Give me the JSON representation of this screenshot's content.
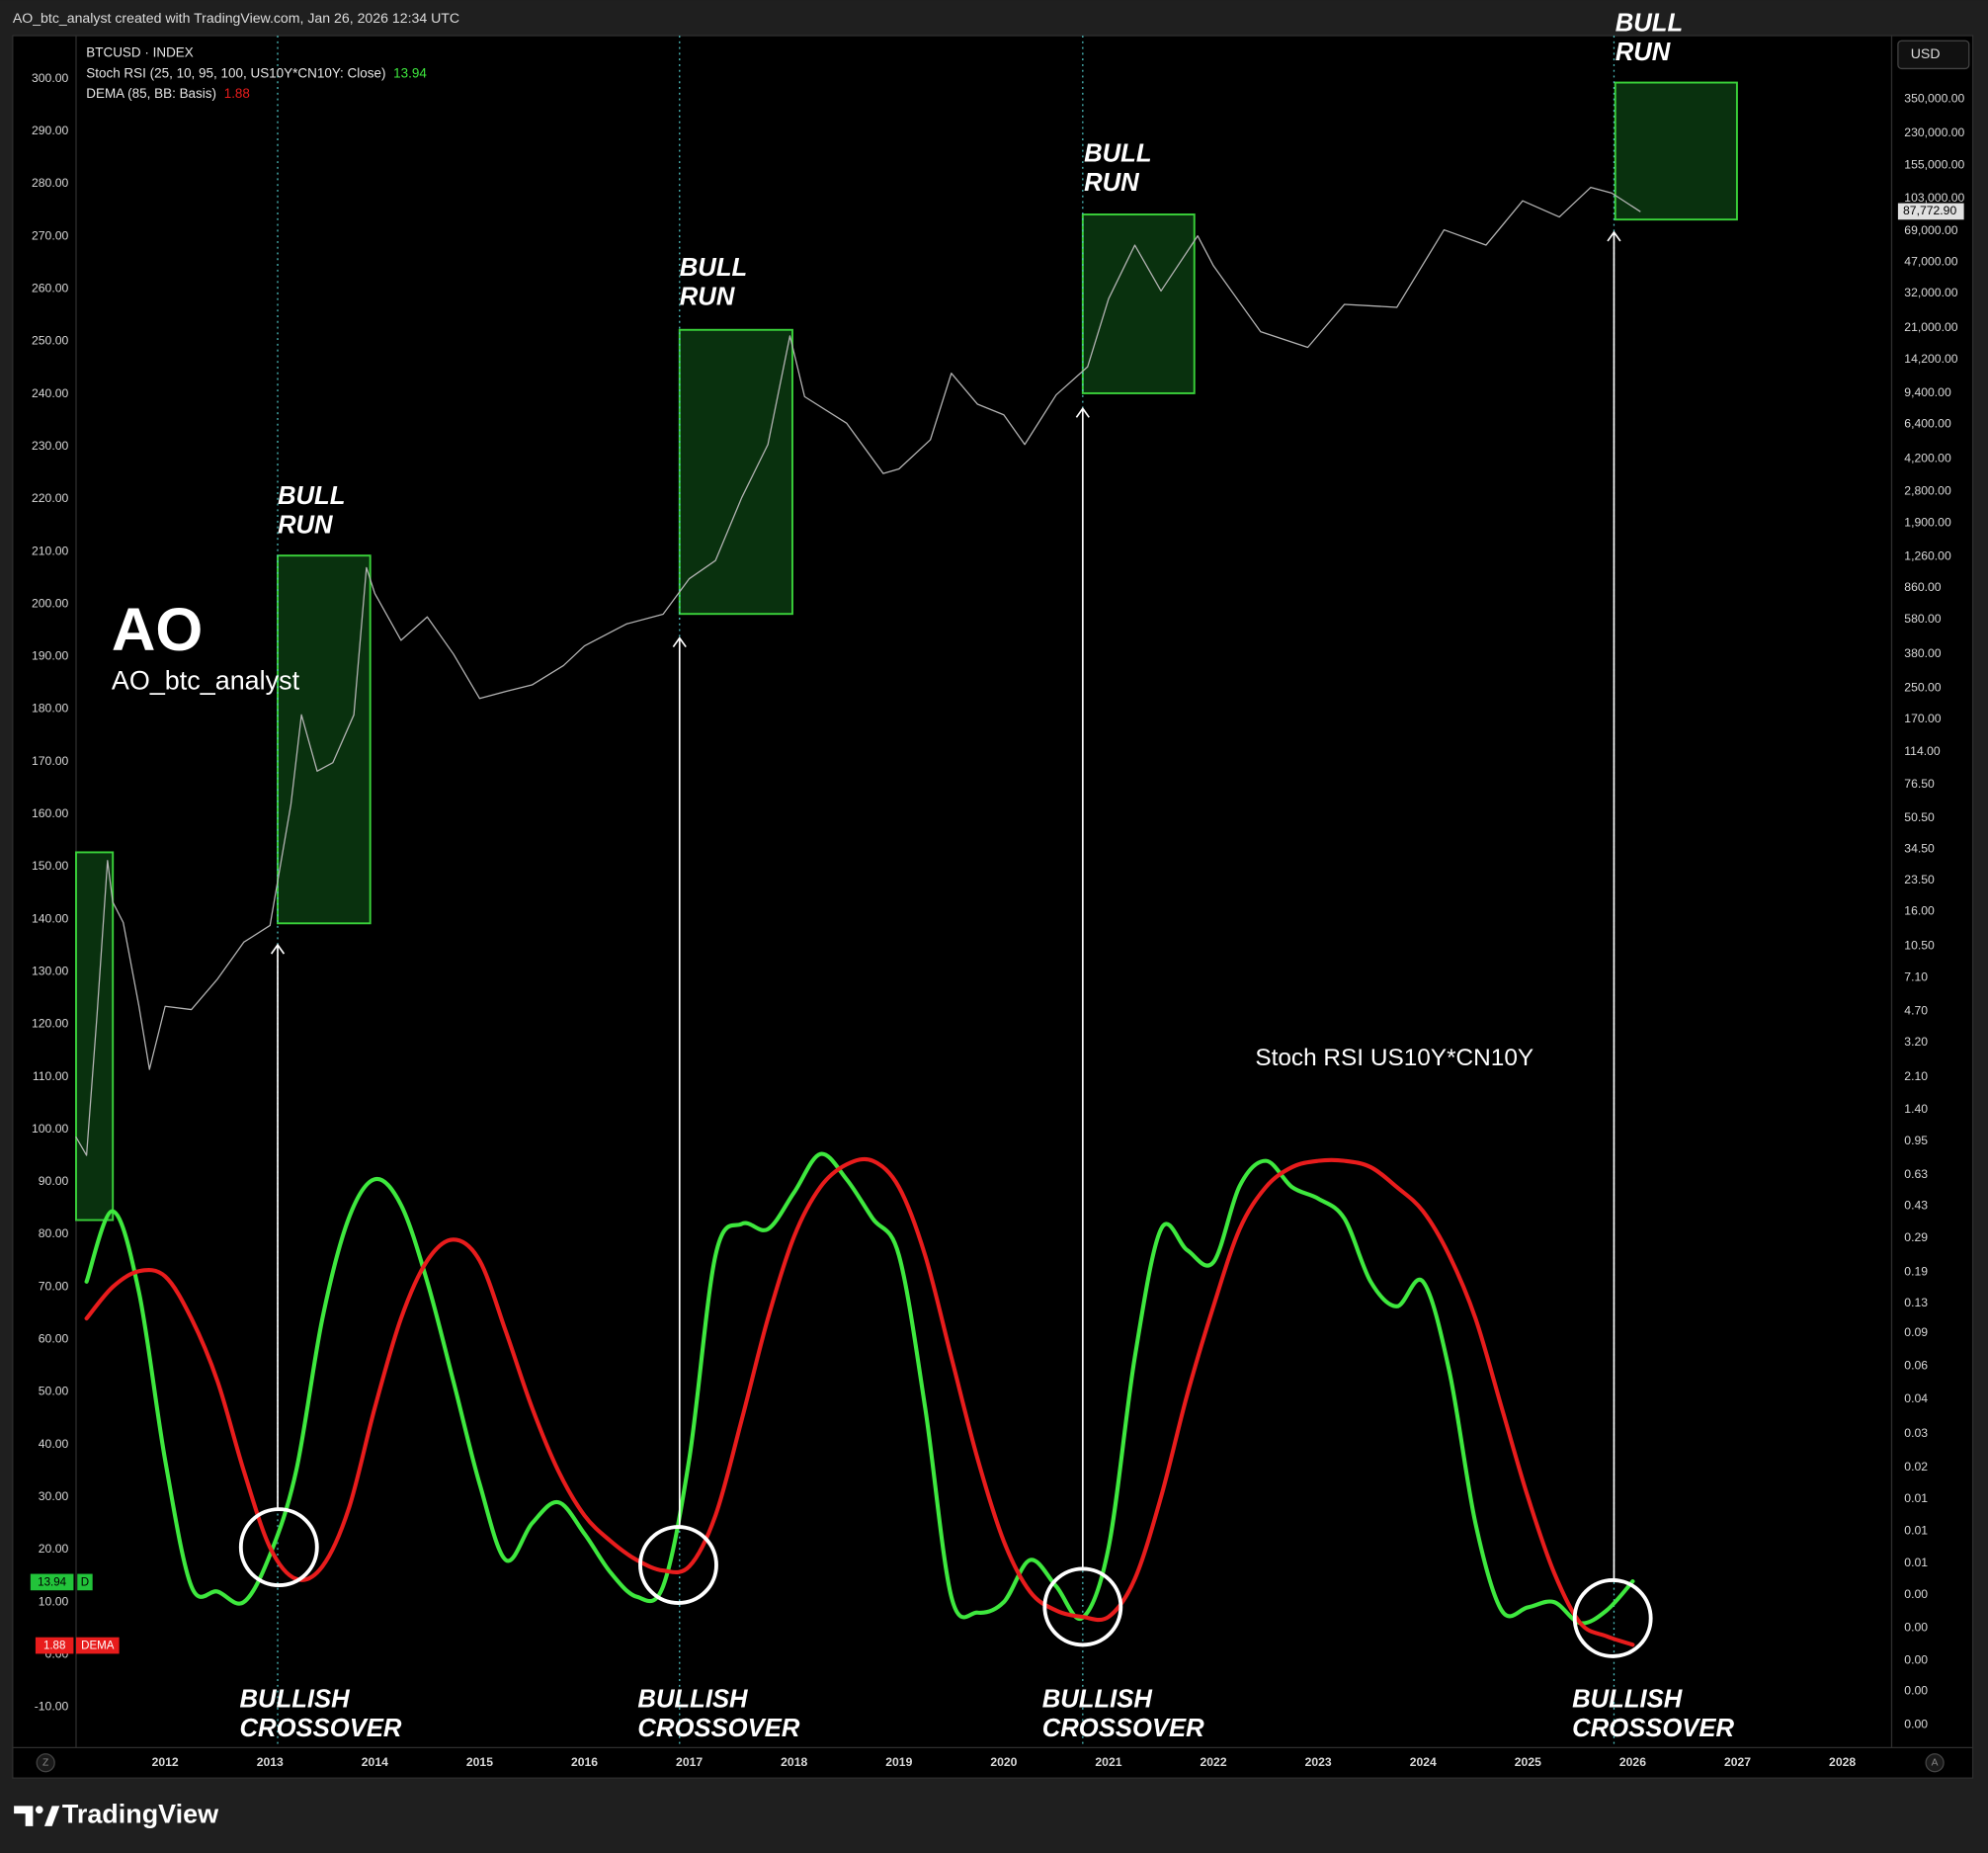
{
  "header": "AO_btc_analyst created with TradingView.com, Jan 26, 2026 12:34 UTC",
  "footer": "TradingView",
  "watermark": {
    "title": "AO",
    "subtitle": "AO_btc_analyst"
  },
  "chart_data": {
    "type": "line",
    "annotations": {
      "indicator_label": "Stoch RSI US10Y*CN10Y",
      "bull_run": [
        [
          "BULL",
          "RUN"
        ],
        [
          "BULL",
          "RUN"
        ],
        [
          "BULL",
          "RUN"
        ],
        [
          "BULL",
          "RUN"
        ]
      ],
      "crossover": [
        [
          "BULLISH",
          "CROSSOVER"
        ],
        [
          "BULLISH",
          "CROSSOVER"
        ],
        [
          "BULLISH",
          "CROSSOVER"
        ],
        [
          "BULLISH",
          "CROSSOVER"
        ]
      ]
    },
    "currency": "USD",
    "badge_d": "D",
    "badge_dema": "DEMA",
    "button_left": "Z",
    "button_right": "A",
    "price_label": {
      "value": 87772.9,
      "label": "87,772.90"
    },
    "xlim": [
      2011.15,
      2028.47
    ],
    "xticks": [
      2012,
      2013,
      2014,
      2015,
      2016,
      2017,
      2018,
      2019,
      2020,
      2021,
      2022,
      2023,
      2024,
      2025,
      2026,
      2027,
      2028
    ],
    "ylim": [
      -17.7,
      308.2
    ],
    "yticks": [
      {
        "value": -10,
        "label": "-10.00"
      },
      {
        "value": 0,
        "label": "0.00"
      },
      {
        "value": 10,
        "label": "10.00"
      },
      {
        "value": 20,
        "label": "20.00"
      },
      {
        "value": 30,
        "label": "30.00"
      },
      {
        "value": 40,
        "label": "40.00"
      },
      {
        "value": 50,
        "label": "50.00"
      },
      {
        "value": 60,
        "label": "60.00"
      },
      {
        "value": 70,
        "label": "70.00"
      },
      {
        "value": 80,
        "label": "80.00"
      },
      {
        "value": 90,
        "label": "90.00"
      },
      {
        "value": 100,
        "label": "100.00"
      },
      {
        "value": 110,
        "label": "110.00"
      },
      {
        "value": 120,
        "label": "120.00"
      },
      {
        "value": 130,
        "label": "130.00"
      },
      {
        "value": 140,
        "label": "140.00"
      },
      {
        "value": 150,
        "label": "150.00"
      },
      {
        "value": 160,
        "label": "160.00"
      },
      {
        "value": 170,
        "label": "170.00"
      },
      {
        "value": 180,
        "label": "180.00"
      },
      {
        "value": 190,
        "label": "190.00"
      },
      {
        "value": 200,
        "label": "200.00"
      },
      {
        "value": 210,
        "label": "210.00"
      },
      {
        "value": 220,
        "label": "220.00"
      },
      {
        "value": 230,
        "label": "230.00"
      },
      {
        "value": 240,
        "label": "240.00"
      },
      {
        "value": 250,
        "label": "250.00"
      },
      {
        "value": 260,
        "label": "260.00"
      },
      {
        "value": 270,
        "label": "270.00"
      },
      {
        "value": 280,
        "label": "280.00"
      },
      {
        "value": 290,
        "label": "290.00"
      },
      {
        "value": 300,
        "label": "300.00"
      }
    ],
    "y2lim": [
      0.00055,
      762000
    ],
    "y2log": true,
    "y2ticks": [
      {
        "value": 350000,
        "label": "350,000.00"
      },
      {
        "value": 230000,
        "label": "230,000.00"
      },
      {
        "value": 155000,
        "label": "155,000.00"
      },
      {
        "value": 103000,
        "label": "103,000.00"
      },
      {
        "value": 69000,
        "label": "69,000.00"
      },
      {
        "value": 47000,
        "label": "47,000.00"
      },
      {
        "value": 32000,
        "label": "32,000.00"
      },
      {
        "value": 21000,
        "label": "21,000.00"
      },
      {
        "value": 14200,
        "label": "14,200.00"
      },
      {
        "value": 9400,
        "label": "9,400.00"
      },
      {
        "value": 6400,
        "label": "6,400.00"
      },
      {
        "value": 4200,
        "label": "4,200.00"
      },
      {
        "value": 2800,
        "label": "2,800.00"
      },
      {
        "value": 1900,
        "label": "1,900.00"
      },
      {
        "value": 1260,
        "label": "1,260.00"
      },
      {
        "value": 860,
        "label": "860.00"
      },
      {
        "value": 580,
        "label": "580.00"
      },
      {
        "value": 380,
        "label": "380.00"
      },
      {
        "value": 250,
        "label": "250.00"
      },
      {
        "value": 170,
        "label": "170.00"
      },
      {
        "value": 114,
        "label": "114.00"
      },
      {
        "value": 76.5,
        "label": "76.50"
      },
      {
        "value": 50.5,
        "label": "50.50"
      },
      {
        "value": 34.5,
        "label": "34.50"
      },
      {
        "value": 23.5,
        "label": "23.50"
      },
      {
        "value": 16,
        "label": "16.00"
      },
      {
        "value": 10.5,
        "label": "10.50"
      },
      {
        "value": 7.1,
        "label": "7.10"
      },
      {
        "value": 4.7,
        "label": "4.70"
      },
      {
        "value": 3.2,
        "label": "3.20"
      },
      {
        "value": 2.1,
        "label": "2.10"
      },
      {
        "value": 1.4,
        "label": "1.40"
      },
      {
        "value": 0.95,
        "label": "0.95"
      },
      {
        "value": 0.63,
        "label": "0.63"
      },
      {
        "value": 0.43,
        "label": "0.43"
      },
      {
        "value": 0.29,
        "label": "0.29"
      },
      {
        "value": 0.19,
        "label": "0.19"
      },
      {
        "value": 0.13,
        "label": "0.13"
      },
      {
        "value": 0.09,
        "label": "0.09"
      },
      {
        "value": 0.06,
        "label": "0.06"
      },
      {
        "value": 0.04,
        "label": "0.04"
      },
      {
        "value": 0.026,
        "label": "0.03"
      },
      {
        "value": 0.0173,
        "label": "0.02"
      },
      {
        "value": 0.0117,
        "label": "0.01"
      },
      {
        "value": 0.0079,
        "label": "0.01"
      },
      {
        "value": 0.0053,
        "label": "0.01"
      },
      {
        "value": 0.0036,
        "label": "0.00"
      },
      {
        "value": 0.0024,
        "label": "0.00"
      },
      {
        "value": 0.0016,
        "label": "0.00"
      },
      {
        "value": 0.0011,
        "label": "0.00"
      },
      {
        "value": 0.00073,
        "label": "0.00"
      }
    ],
    "x": [
      2011.25,
      2011.5,
      2011.75,
      2012,
      2012.25,
      2012.5,
      2012.75,
      2013,
      2013.25,
      2013.5,
      2013.75,
      2014,
      2014.25,
      2014.5,
      2014.75,
      2015,
      2015.25,
      2015.5,
      2015.75,
      2016,
      2016.25,
      2016.5,
      2016.75,
      2017,
      2017.25,
      2017.5,
      2017.75,
      2018,
      2018.25,
      2018.5,
      2018.75,
      2019,
      2019.25,
      2019.5,
      2019.75,
      2020,
      2020.25,
      2020.5,
      2020.75,
      2021,
      2021.25,
      2021.5,
      2021.75,
      2022,
      2022.25,
      2022.5,
      2022.75,
      2023,
      2023.25,
      2023.5,
      2023.75,
      2024,
      2024.25,
      2024.5,
      2024.75,
      2025,
      2025.25,
      2025.5,
      2025.75,
      2026
    ],
    "series": [
      {
        "name": "Stoch RSI (25, 10, 95, 100, US10Y*CN10Y: Close)",
        "color": "#3ee83e",
        "values": [
          71,
          84.4,
          69,
          37,
          13,
          12,
          10,
          19,
          35,
          64,
          83,
          90.5,
          85.6,
          71,
          52,
          32.5,
          18,
          25,
          29,
          23,
          15.6,
          11,
          13,
          37.3,
          76,
          82,
          81,
          88,
          95.3,
          90.5,
          83,
          76,
          47,
          11,
          8,
          10,
          18,
          13,
          7,
          20.4,
          56.6,
          81,
          77,
          74.7,
          89.2,
          94,
          89,
          86.8,
          83,
          71,
          66.3,
          71,
          54,
          25,
          8.4,
          9,
          10,
          6,
          8.4,
          13.94
        ]
      },
      {
        "name": "DEMA (85, BB: Basis)",
        "color": "#e81c1c",
        "values": [
          64,
          70,
          73,
          72,
          64,
          52,
          35,
          20.4,
          14.4,
          16.8,
          27.7,
          47,
          64,
          75,
          79,
          75,
          61.5,
          47,
          35,
          26.5,
          21.6,
          18,
          16,
          16.8,
          26.5,
          44.7,
          64,
          79.6,
          89,
          93.3,
          94,
          89,
          76,
          56.6,
          37.3,
          21.6,
          12,
          8.4,
          7.2,
          7.2,
          14.4,
          30,
          49.5,
          66.3,
          81,
          89,
          92.8,
          94,
          94,
          92.8,
          89,
          84.4,
          76,
          64,
          47,
          30,
          15.6,
          6,
          3.5,
          1.88
        ]
      },
      {
        "name": "BTCUSD · INDEX",
        "color": "#b4b4b4",
        "axis": "y2",
        "x": [
          2011.15,
          2011.25,
          2011.35,
          2011.45,
          2011.5,
          2011.6,
          2011.75,
          2011.85,
          2012,
          2012.25,
          2012.5,
          2012.75,
          2013,
          2013.2,
          2013.3,
          2013.45,
          2013.6,
          2013.8,
          2013.92,
          2014,
          2014.25,
          2014.5,
          2014.75,
          2015,
          2015.25,
          2015.5,
          2015.8,
          2016,
          2016.4,
          2016.75,
          2017,
          2017.25,
          2017.5,
          2017.75,
          2017.96,
          2018.1,
          2018.5,
          2018.85,
          2019,
          2019.3,
          2019.5,
          2019.75,
          2020,
          2020.2,
          2020.5,
          2020.8,
          2021,
          2021.25,
          2021.5,
          2021.85,
          2022,
          2022.45,
          2022.9,
          2023.25,
          2023.75,
          2024.2,
          2024.6,
          2024.95,
          2025.3,
          2025.6,
          2025.8,
          2026.07
        ],
        "values": [
          1,
          0.8,
          4.5,
          30,
          18,
          14,
          5,
          2.3,
          5,
          4.8,
          7,
          11,
          13.5,
          60,
          180,
          90,
          100,
          180,
          1100,
          800,
          450,
          600,
          380,
          220,
          240,
          260,
          330,
          420,
          550,
          620,
          960,
          1200,
          2600,
          5000,
          19000,
          9000,
          6500,
          3500,
          3700,
          5300,
          12000,
          8200,
          7200,
          5000,
          9200,
          13000,
          30000,
          58000,
          33000,
          65000,
          45000,
          20000,
          16500,
          28000,
          27000,
          70000,
          58000,
          100000,
          82000,
          118000,
          110000,
          87772.9
        ]
      }
    ]
  }
}
